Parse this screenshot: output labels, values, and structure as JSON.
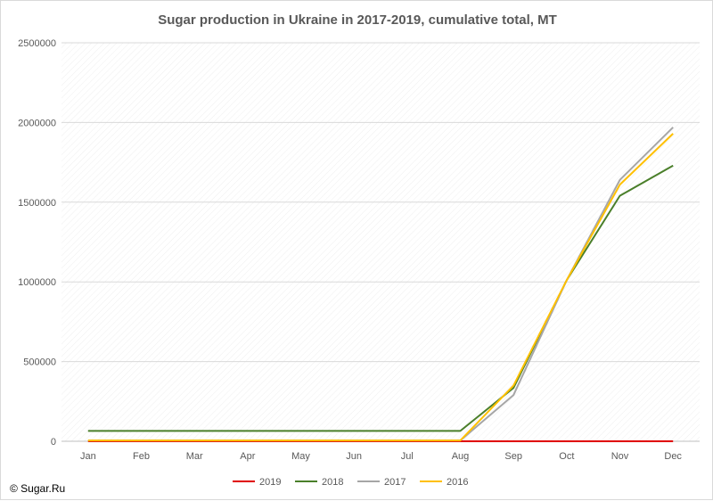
{
  "chart_data": {
    "type": "line",
    "title": "Sugar production in Ukraine in 2017-2019, cumulative total, MT",
    "categories": [
      "Jan",
      "Feb",
      "Mar",
      "Apr",
      "May",
      "Jun",
      "Jul",
      "Aug",
      "Sep",
      "Oct",
      "Nov",
      "Dec"
    ],
    "ylim": [
      0,
      2500000
    ],
    "yticks": [
      "0",
      "500000",
      "1000000",
      "1500000",
      "2000000",
      "2500000"
    ],
    "grid": true,
    "legend_position": "bottom",
    "series": [
      {
        "name": "2019",
        "color": "#e00000",
        "values": [
          0,
          0,
          0,
          0,
          0,
          0,
          0,
          0,
          0,
          0,
          0,
          0
        ]
      },
      {
        "name": "2018",
        "color": "#4a7f2a",
        "values": [
          65000,
          65000,
          65000,
          65000,
          65000,
          65000,
          65000,
          65000,
          335000,
          1010000,
          1540000,
          1730000
        ]
      },
      {
        "name": "2017",
        "color": "#a6a6a6",
        "values": [
          5000,
          5000,
          5000,
          5000,
          5000,
          5000,
          5000,
          5000,
          290000,
          1010000,
          1640000,
          1970000
        ]
      },
      {
        "name": "2016",
        "color": "#ffc000",
        "values": [
          5000,
          5000,
          5000,
          5000,
          5000,
          5000,
          5000,
          5000,
          350000,
          1010000,
          1610000,
          1930000
        ]
      }
    ]
  },
  "footer": {
    "copyright": "© Sugar.Ru"
  }
}
